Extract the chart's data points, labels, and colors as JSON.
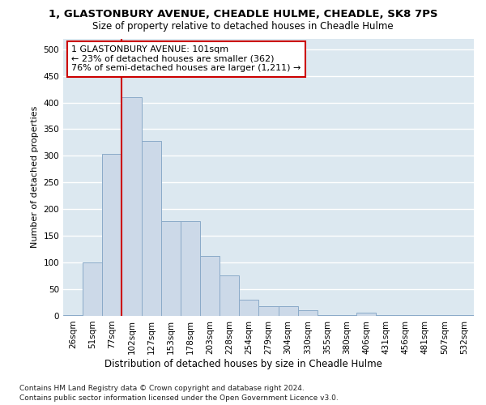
{
  "title1": "1, GLASTONBURY AVENUE, CHEADLE HULME, CHEADLE, SK8 7PS",
  "title2": "Size of property relative to detached houses in Cheadle Hulme",
  "xlabel": "Distribution of detached houses by size in Cheadle Hulme",
  "ylabel": "Number of detached properties",
  "categories": [
    "26sqm",
    "51sqm",
    "77sqm",
    "102sqm",
    "127sqm",
    "153sqm",
    "178sqm",
    "203sqm",
    "228sqm",
    "254sqm",
    "279sqm",
    "304sqm",
    "330sqm",
    "355sqm",
    "380sqm",
    "406sqm",
    "431sqm",
    "456sqm",
    "481sqm",
    "507sqm",
    "532sqm"
  ],
  "values": [
    2,
    100,
    303,
    410,
    328,
    178,
    178,
    113,
    76,
    30,
    18,
    18,
    10,
    2,
    2,
    6,
    2,
    2,
    2,
    2,
    2
  ],
  "bar_color": "#ccd9e8",
  "bar_edge_color": "#8aaac8",
  "bg_color": "#dce8f0",
  "grid_color": "#ffffff",
  "property_line_idx": 3,
  "annotation_text": "1 GLASTONBURY AVENUE: 101sqm\n← 23% of detached houses are smaller (362)\n76% of semi-detached houses are larger (1,211) →",
  "annotation_box_color": "#ffffff",
  "annotation_border_color": "#cc0000",
  "footer1": "Contains HM Land Registry data © Crown copyright and database right 2024.",
  "footer2": "Contains public sector information licensed under the Open Government Licence v3.0.",
  "ylim": [
    0,
    520
  ],
  "fig_bg": "#ffffff"
}
